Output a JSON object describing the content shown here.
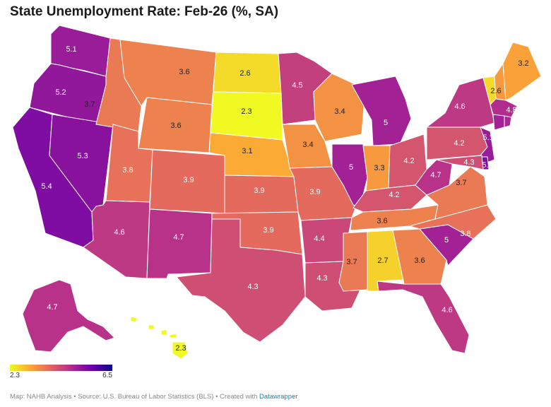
{
  "title": "State Unemployment Rate: Feb-26 (%, SA)",
  "legend": {
    "min_label": "2.3",
    "max_label": "6.5",
    "min": 2.3,
    "max": 6.5
  },
  "footer": {
    "text": "Map: NAHB Analysis • Source: U.S. Bureau of Labor Statistics (BLS) • Created with ",
    "link": "Datawrapper"
  },
  "colors": {
    "background": "#ffffff",
    "border": "#ffffff",
    "label_light": "#ffffff",
    "label_dark": "#222222"
  },
  "color_scale": [
    "#f0f921",
    "#fca636",
    "#e16462",
    "#b12a90",
    "#6a00a8",
    "#0d0887"
  ],
  "chart_data": {
    "type": "choropleth",
    "title": "State Unemployment Rate: Feb-26 (%, SA)",
    "unit": "%",
    "states": [
      {
        "code": "WA",
        "value": "5.1"
      },
      {
        "code": "OR",
        "value": "5.2"
      },
      {
        "code": "CA",
        "value": "5.4"
      },
      {
        "code": "NV",
        "value": "5.3"
      },
      {
        "code": "ID",
        "value": "3.7"
      },
      {
        "code": "MT",
        "value": "3.6"
      },
      {
        "code": "WY",
        "value": "3.6"
      },
      {
        "code": "UT",
        "value": "3.8"
      },
      {
        "code": "AZ",
        "value": "4.6"
      },
      {
        "code": "CO",
        "value": "3.9"
      },
      {
        "code": "NM",
        "value": "4.7"
      },
      {
        "code": "ND",
        "value": "2.6"
      },
      {
        "code": "SD",
        "value": "2.3"
      },
      {
        "code": "NE",
        "value": "3.1"
      },
      {
        "code": "KS",
        "value": "3.9"
      },
      {
        "code": "OK",
        "value": "3.9"
      },
      {
        "code": "TX",
        "value": "4.3"
      },
      {
        "code": "MN",
        "value": "4.5"
      },
      {
        "code": "IA",
        "value": "3.4"
      },
      {
        "code": "MO",
        "value": "3.9"
      },
      {
        "code": "AR",
        "value": "4.4"
      },
      {
        "code": "LA",
        "value": "4.3"
      },
      {
        "code": "WI",
        "value": "3.4"
      },
      {
        "code": "IL",
        "value": "5"
      },
      {
        "code": "MI",
        "value": "5"
      },
      {
        "code": "IN",
        "value": "3.3"
      },
      {
        "code": "OH",
        "value": "4.2"
      },
      {
        "code": "KY",
        "value": "4.2"
      },
      {
        "code": "TN",
        "value": "3.6"
      },
      {
        "code": "MS",
        "value": "3.7"
      },
      {
        "code": "AL",
        "value": "2.7"
      },
      {
        "code": "GA",
        "value": "3.6"
      },
      {
        "code": "FL",
        "value": "4.6"
      },
      {
        "code": "SC",
        "value": "5"
      },
      {
        "code": "NC",
        "value": "3.8"
      },
      {
        "code": "VA",
        "value": "3.7"
      },
      {
        "code": "WV",
        "value": "4.7"
      },
      {
        "code": "PA",
        "value": "4.2"
      },
      {
        "code": "NY",
        "value": "4.6"
      },
      {
        "code": "VT",
        "value": "2.6"
      },
      {
        "code": "ME",
        "value": "3.2"
      },
      {
        "code": "MA",
        "value": "4.8"
      },
      {
        "code": "NJ",
        "value": "5.1"
      },
      {
        "code": "MD",
        "value": "4.3"
      },
      {
        "code": "DE",
        "value": "5.4"
      },
      {
        "code": "AK",
        "value": "4.7"
      },
      {
        "code": "HI",
        "value": "2.3"
      }
    ],
    "unlabeled_states": [
      {
        "code": "NH",
        "value": 3.3
      },
      {
        "code": "CT",
        "value": 5.0
      },
      {
        "code": "RI",
        "value": 4.9
      },
      {
        "code": "DC",
        "value": 6.0
      }
    ]
  }
}
